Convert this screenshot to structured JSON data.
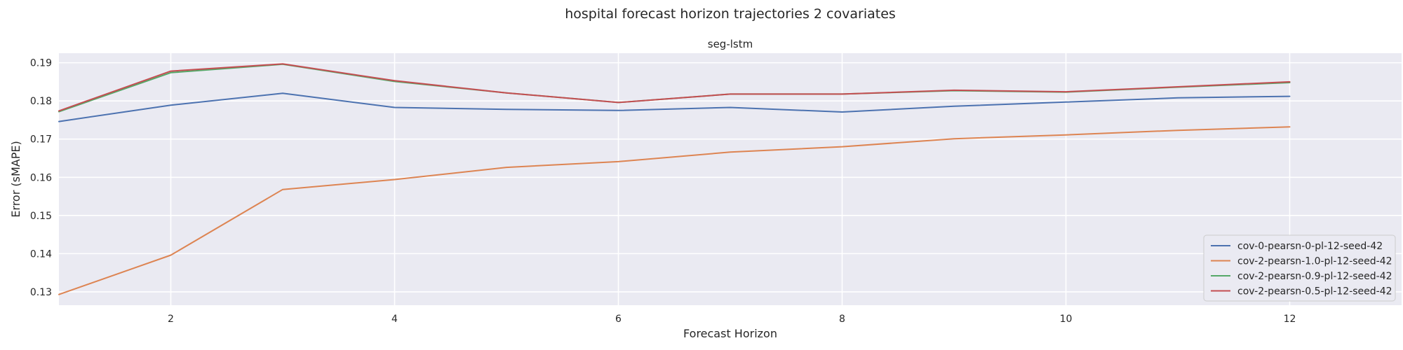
{
  "figure": {
    "suptitle": "hospital forecast horizon trajectories 2 covariates"
  },
  "chart_data": {
    "type": "line",
    "title": "seg-lstm",
    "xlabel": "Forecast Horizon",
    "ylabel": "Error (sMAPE)",
    "xlim": [
      1,
      13
    ],
    "ylim": [
      0.1265,
      0.1925
    ],
    "xticks": [
      2,
      4,
      6,
      8,
      10,
      12
    ],
    "yticks": [
      0.13,
      0.14,
      0.15,
      0.16,
      0.17,
      0.18,
      0.19
    ],
    "grid": true,
    "legend_position": "bottom-right",
    "x": [
      1,
      2,
      3,
      4,
      5,
      6,
      7,
      8,
      9,
      10,
      11,
      12
    ],
    "series": [
      {
        "name": "cov-0-pearsn-0-pl-12-seed-42",
        "color": "#4c72b0",
        "values": [
          0.1746,
          0.1789,
          0.182,
          0.1783,
          0.1778,
          0.1775,
          0.1783,
          0.1771,
          0.1786,
          0.1797,
          0.1808,
          0.1812
        ]
      },
      {
        "name": "cov-2-pearsn-1.0-pl-12-seed-42",
        "color": "#dd8452",
        "values": [
          0.1293,
          0.1396,
          0.1568,
          0.1594,
          0.1626,
          0.1641,
          0.1666,
          0.168,
          0.1701,
          0.1711,
          0.1723,
          0.1732
        ]
      },
      {
        "name": "cov-2-pearsn-0.9-pl-12-seed-42",
        "color": "#55a868",
        "values": [
          0.1772,
          0.1874,
          0.1896,
          0.1851,
          0.1821,
          0.1796,
          0.1818,
          0.1818,
          0.1827,
          0.1823,
          0.1836,
          0.1848
        ]
      },
      {
        "name": "cov-2-pearsn-0.5-pl-12-seed-42",
        "color": "#c44e52",
        "values": [
          0.1774,
          0.1878,
          0.1897,
          0.1853,
          0.1821,
          0.1796,
          0.1818,
          0.1818,
          0.1828,
          0.1824,
          0.1837,
          0.185
        ]
      }
    ]
  }
}
